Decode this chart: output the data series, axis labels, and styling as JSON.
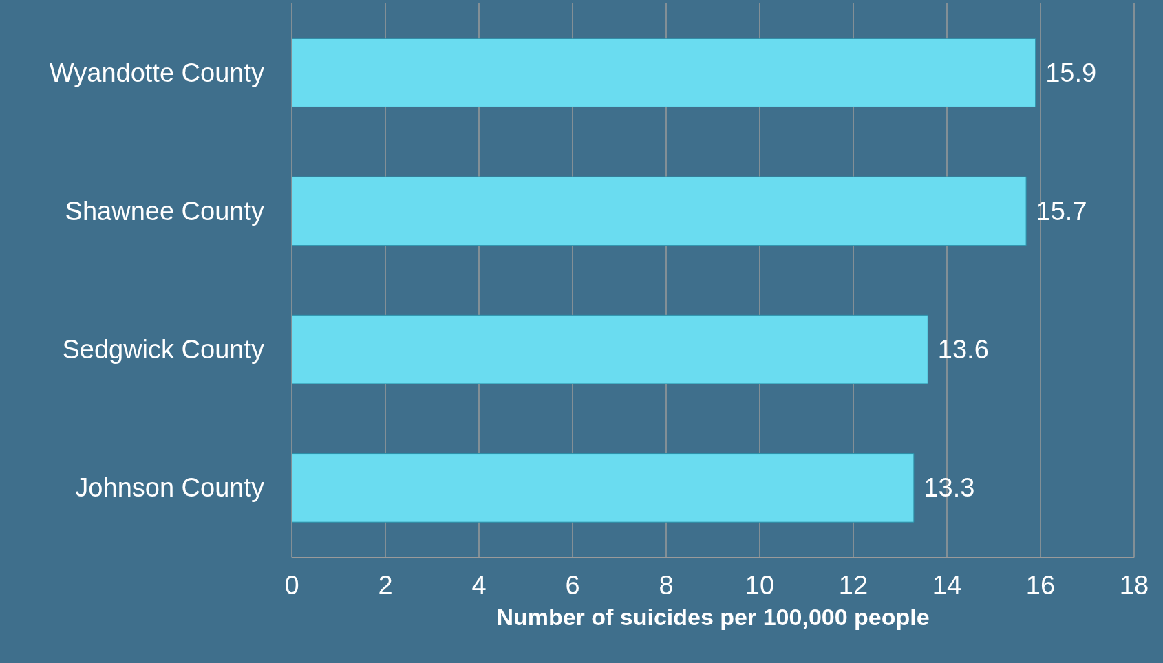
{
  "chart_data": {
    "type": "bar",
    "orientation": "horizontal",
    "xlabel": "Number of suicides per 100,000 people",
    "categories": [
      "Wyandotte County",
      "Shawnee County",
      "Sedgwick County",
      "Johnson County"
    ],
    "values": [
      15.9,
      15.7,
      13.6,
      13.3
    ],
    "color": "#6adcf0",
    "xlim": [
      0,
      18
    ],
    "xticks": [
      0,
      2,
      4,
      6,
      8,
      10,
      12,
      14,
      16,
      18
    ],
    "grid": "x",
    "data_labels": true
  }
}
